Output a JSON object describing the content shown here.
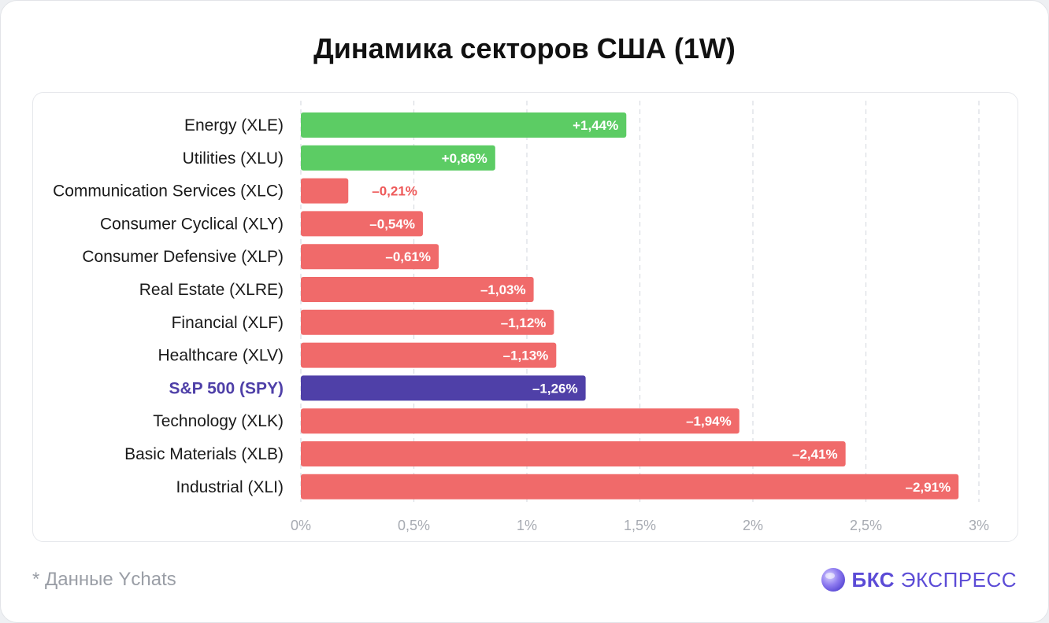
{
  "title": "Динамика секторов США (1W)",
  "footnote": "* Данные Ychats",
  "brand": {
    "bold": "БКС",
    "light": "ЭКСПРЕСС",
    "logo_icon": "bks-sphere-icon"
  },
  "colors": {
    "positive": "#5ccc64",
    "negative": "#f06a6a",
    "highlight": "#4f40a8",
    "negative_label_outside": "#ee5a5a",
    "category_text": "#1a1a1a",
    "tick_text": "#a7abb2",
    "grid": "#dcdfe4"
  },
  "chart_data": {
    "type": "bar",
    "orientation": "horizontal",
    "title": "Динамика секторов США (1W)",
    "categories": [
      "Energy (XLE)",
      "Utilities (XLU)",
      "Communication Services (XLC)",
      "Consumer Cyclical (XLY)",
      "Consumer Defensive (XLP)",
      "Real Estate (XLRE)",
      "Financial (XLF)",
      "Healthcare (XLV)",
      "S&P 500 (SPY)",
      "Technology (XLK)",
      "Basic Materials (XLB)",
      "Industrial (XLI)"
    ],
    "values": [
      1.44,
      0.86,
      -0.21,
      -0.54,
      -0.61,
      -1.03,
      -1.12,
      -1.13,
      -1.26,
      -1.94,
      -2.41,
      -2.91
    ],
    "data_labels": [
      "+1,44%",
      "+0,86%",
      "–0,21%",
      "–0,54%",
      "–0,61%",
      "–1,03%",
      "–1,12%",
      "–1,13%",
      "–1,26%",
      "–1,94%",
      "–2,41%",
      "–2,91%"
    ],
    "highlight_category": "S&P 500 (SPY)",
    "bar_length": "absolute value",
    "xlim": [
      0,
      3
    ],
    "x_ticks": [
      0,
      0.5,
      1,
      1.5,
      2,
      2.5,
      3
    ],
    "x_tick_labels": [
      "0%",
      "0,5%",
      "1%",
      "1,5%",
      "2%",
      "2,5%",
      "3%"
    ],
    "grid": "vertical dashed"
  }
}
